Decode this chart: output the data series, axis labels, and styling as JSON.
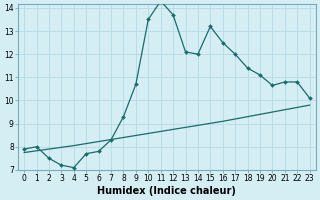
{
  "title": "",
  "xlabel": "Humidex (Indice chaleur)",
  "ylabel": "",
  "bg_color": "#d4eef4",
  "line_color": "#1a6b6b",
  "x_jagged": [
    0,
    1,
    2,
    3,
    4,
    5,
    6,
    7,
    8,
    9,
    10,
    11,
    12,
    13,
    14,
    15,
    16,
    17,
    18,
    19,
    20,
    21,
    22,
    23
  ],
  "y_jagged": [
    7.9,
    8.0,
    7.5,
    7.2,
    7.1,
    7.7,
    7.8,
    8.3,
    9.3,
    10.7,
    13.5,
    14.3,
    13.7,
    12.1,
    12.0,
    13.2,
    12.5,
    12.0,
    11.4,
    11.1,
    10.65,
    10.8,
    10.8,
    10.1
  ],
  "x_trend": [
    0,
    4,
    8,
    12,
    16,
    20,
    23
  ],
  "y_trend": [
    7.75,
    8.05,
    8.4,
    8.75,
    9.1,
    9.5,
    9.8
  ],
  "xlim": [
    -0.5,
    23.5
  ],
  "ylim": [
    7,
    14
  ],
  "xticks": [
    0,
    1,
    2,
    3,
    4,
    5,
    6,
    7,
    8,
    9,
    10,
    11,
    12,
    13,
    14,
    15,
    16,
    17,
    18,
    19,
    20,
    21,
    22,
    23
  ],
  "yticks": [
    7,
    8,
    9,
    10,
    11,
    12,
    13,
    14
  ],
  "tick_fontsize": 5.5,
  "xlabel_fontsize": 7,
  "grid_color": "#b8dde6",
  "spine_color": "#7aabba"
}
